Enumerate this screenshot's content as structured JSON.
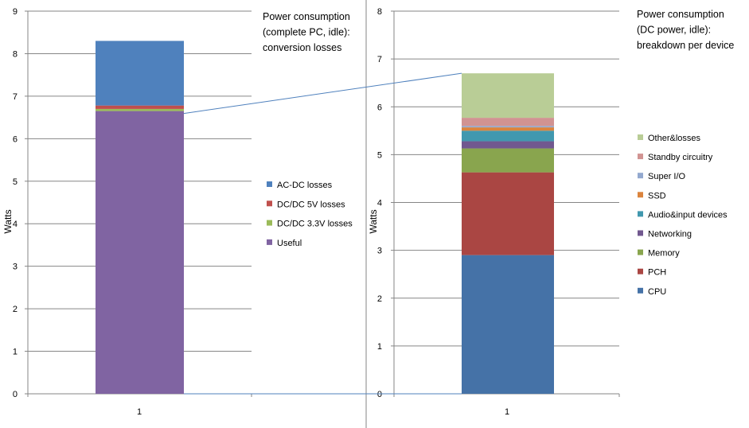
{
  "chart_data": [
    {
      "type": "bar",
      "stacked": true,
      "title_lines": [
        "Power consumption",
        "(complete PC, idle):",
        "conversion losses"
      ],
      "ylabel": "Watts",
      "xlabel": "",
      "categories": [
        "1"
      ],
      "ylim": [
        0,
        9
      ],
      "yticks": [
        "0",
        "1",
        "2",
        "3",
        "4",
        "5",
        "6",
        "7",
        "8",
        "9"
      ],
      "grid": true,
      "legend_position": "right",
      "series": [
        {
          "name": "Useful",
          "values": [
            6.65
          ],
          "color": "#8064A2"
        },
        {
          "name": "DC/DC 3.3V losses",
          "values": [
            0.05
          ],
          "color": "#9BBB59"
        },
        {
          "name": "DC/DC 5V losses",
          "values": [
            0.08
          ],
          "color": "#C0504D"
        },
        {
          "name": "AC-DC losses",
          "values": [
            1.52
          ],
          "color": "#4F81BD"
        }
      ]
    },
    {
      "type": "bar",
      "stacked": true,
      "title_lines": [
        "Power consumption",
        "(DC power, idle):",
        "breakdown per device"
      ],
      "ylabel": "Watts",
      "xlabel": "",
      "categories": [
        "1"
      ],
      "ylim": [
        0,
        8
      ],
      "yticks": [
        "0",
        "1",
        "2",
        "3",
        "4",
        "5",
        "6",
        "7",
        "8"
      ],
      "grid": true,
      "legend_position": "right",
      "series": [
        {
          "name": "CPU",
          "values": [
            2.9
          ],
          "color": "#4572A7"
        },
        {
          "name": "PCH",
          "values": [
            1.73
          ],
          "color": "#AA4643"
        },
        {
          "name": "Memory",
          "values": [
            0.5
          ],
          "color": "#89A54E"
        },
        {
          "name": "Networking",
          "values": [
            0.15
          ],
          "color": "#71588F"
        },
        {
          "name": "Audio&input devices",
          "values": [
            0.22
          ],
          "color": "#4198AF"
        },
        {
          "name": "SSD",
          "values": [
            0.07
          ],
          "color": "#DB843D"
        },
        {
          "name": "Super I/O",
          "values": [
            0.03
          ],
          "color": "#93A9CF"
        },
        {
          "name": "Standby circuitry",
          "values": [
            0.17
          ],
          "color": "#D19392"
        },
        {
          "name": "Other&losses",
          "values": [
            0.93
          ],
          "color": "#B9CD96"
        }
      ]
    }
  ]
}
